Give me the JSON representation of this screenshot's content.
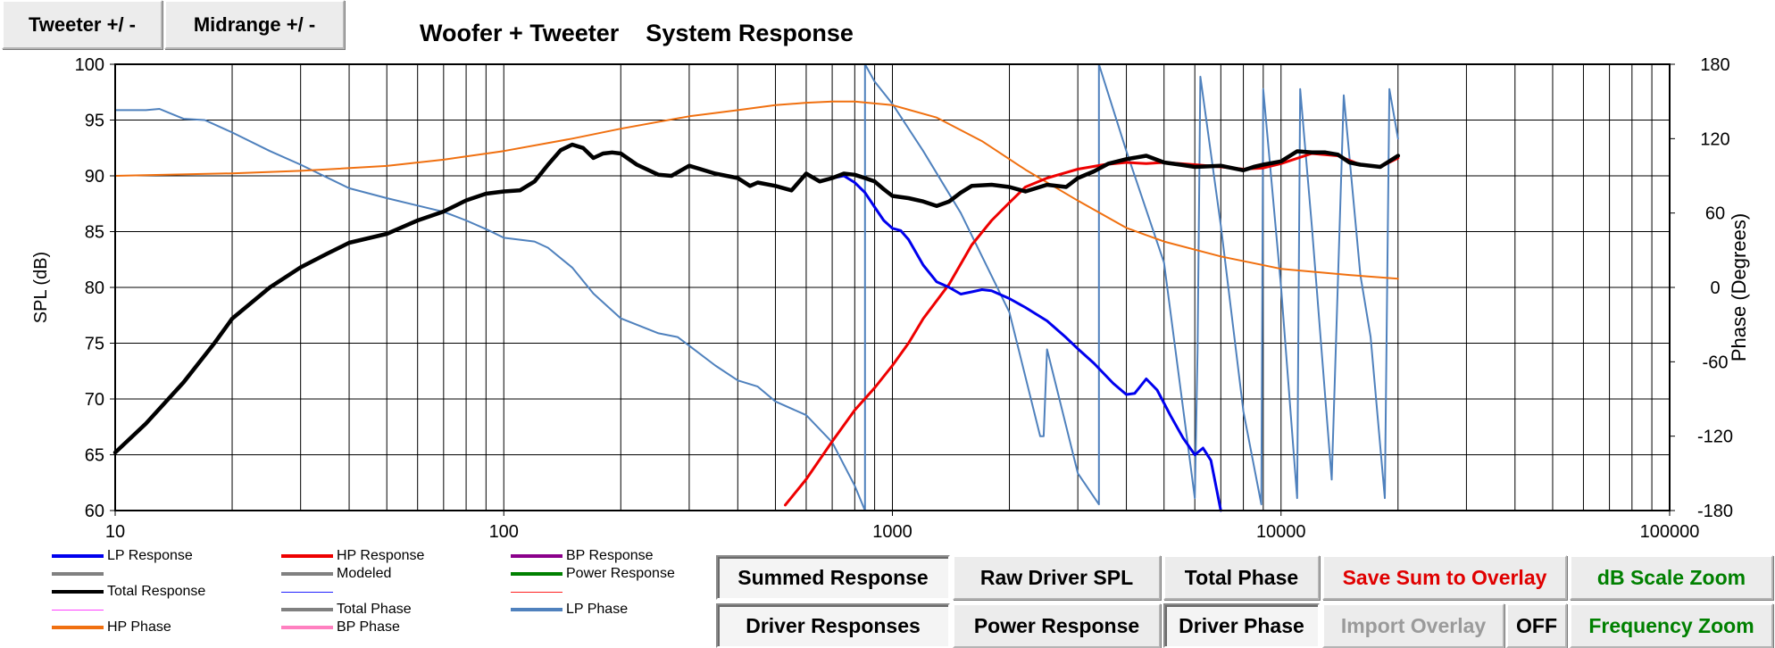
{
  "toolbar": {
    "tweeter_btn": "Tweeter +/ -",
    "midrange_btn": "Midrange   +/ -"
  },
  "chart_title": "Woofer + Tweeter    System Response",
  "buttons": {
    "summed_response": "Summed Response",
    "raw_driver_spl": "Raw Driver SPL",
    "total_phase": "Total Phase",
    "save_sum": "Save Sum to Overlay",
    "db_scale_zoom": "dB Scale Zoom",
    "driver_responses": "Driver Responses",
    "power_response": "Power Response",
    "driver_phase": "Driver Phase",
    "import_overlay": "Import Overlay",
    "off": "OFF",
    "frequency_zoom": "Frequency Zoom"
  },
  "colors": {
    "lp": "#0000ee",
    "hp": "#ee0000",
    "total": "#000000",
    "lp_phase": "#4f81bd",
    "hp_phase": "#f07010",
    "save_text": "#e00000",
    "green_text": "#008000",
    "gray_text": "#9a9a9a"
  },
  "legend": [
    {
      "label": "LP Response",
      "color": "#0000ee",
      "thin": false
    },
    {
      "label": "HP Response",
      "color": "#ee0000",
      "thin": false
    },
    {
      "label": "BP Response",
      "color": "#8b008b",
      "thin": false
    },
    {
      "label": "",
      "color": "#808080",
      "thin": false
    },
    {
      "label": "Modeled",
      "color": "#808080",
      "thin": false
    },
    {
      "label": "Power Response",
      "color": "#008000",
      "thin": false
    },
    {
      "label": "Total Response",
      "color": "#000000",
      "thin": false
    },
    {
      "label": "",
      "color": "#2020ff",
      "thin": true
    },
    {
      "label": "",
      "color": "#ff2020",
      "thin": true
    },
    {
      "label": "",
      "color": "#ff40ff",
      "thin": true
    },
    {
      "label": "Total Phase",
      "color": "#808080",
      "thin": false
    },
    {
      "label": "LP Phase",
      "color": "#4f81bd",
      "thin": false
    },
    {
      "label": "HP Phase",
      "color": "#f07010",
      "thin": false
    },
    {
      "label": "BP Phase",
      "color": "#ff80c0",
      "thin": false
    }
  ],
  "chart_data": {
    "type": "line",
    "title": "Woofer + Tweeter    System Response",
    "xlabel": "",
    "ylabel": "SPL (dB)",
    "y2label": "Phase (Degrees)",
    "xscale": "log",
    "xlim": [
      10,
      100000
    ],
    "ylim": [
      60,
      100
    ],
    "y2lim": [
      -180,
      180
    ],
    "xticks": [
      10,
      100,
      1000,
      10000,
      100000
    ],
    "xtick_labels": [
      "10",
      "100",
      "1000",
      "10000",
      "100000"
    ],
    "yticks": [
      60,
      65,
      70,
      75,
      80,
      85,
      90,
      95,
      100
    ],
    "y2ticks": [
      -180,
      -120,
      -60,
      0,
      60,
      120,
      180
    ],
    "grid": true,
    "series": [
      {
        "name": "Total Response",
        "axis": "left",
        "color": "#000000",
        "width": 4.5,
        "points": [
          [
            10,
            65.2
          ],
          [
            12,
            67.8
          ],
          [
            15,
            71.5
          ],
          [
            18,
            75
          ],
          [
            20,
            77.2
          ],
          [
            25,
            80
          ],
          [
            30,
            81.8
          ],
          [
            35,
            83
          ],
          [
            40,
            84
          ],
          [
            50,
            84.8
          ],
          [
            60,
            86
          ],
          [
            70,
            86.8
          ],
          [
            80,
            87.8
          ],
          [
            90,
            88.4
          ],
          [
            100,
            88.6
          ],
          [
            110,
            88.7
          ],
          [
            120,
            89.5
          ],
          [
            130,
            91
          ],
          [
            140,
            92.3
          ],
          [
            150,
            92.8
          ],
          [
            160,
            92.5
          ],
          [
            170,
            91.6
          ],
          [
            180,
            92
          ],
          [
            190,
            92.1
          ],
          [
            200,
            92
          ],
          [
            220,
            91
          ],
          [
            250,
            90.1
          ],
          [
            270,
            90
          ],
          [
            300,
            90.9
          ],
          [
            350,
            90.2
          ],
          [
            400,
            89.8
          ],
          [
            430,
            89.1
          ],
          [
            450,
            89.4
          ],
          [
            500,
            89.1
          ],
          [
            550,
            88.7
          ],
          [
            600,
            90.2
          ],
          [
            650,
            89.5
          ],
          [
            700,
            89.8
          ],
          [
            750,
            90.2
          ],
          [
            800,
            90.1
          ],
          [
            850,
            89.8
          ],
          [
            900,
            89.5
          ],
          [
            950,
            88.8
          ],
          [
            1000,
            88.2
          ],
          [
            1100,
            88
          ],
          [
            1200,
            87.7
          ],
          [
            1300,
            87.3
          ],
          [
            1400,
            87.7
          ],
          [
            1500,
            88.5
          ],
          [
            1600,
            89.1
          ],
          [
            1800,
            89.2
          ],
          [
            2000,
            89
          ],
          [
            2200,
            88.6
          ],
          [
            2500,
            89.2
          ],
          [
            2800,
            89
          ],
          [
            3000,
            89.8
          ],
          [
            3300,
            90.4
          ],
          [
            3600,
            91.1
          ],
          [
            4000,
            91.5
          ],
          [
            4500,
            91.8
          ],
          [
            5000,
            91.2
          ],
          [
            5500,
            91
          ],
          [
            6000,
            90.8
          ],
          [
            7000,
            90.9
          ],
          [
            8000,
            90.5
          ],
          [
            8500,
            90.8
          ],
          [
            9000,
            91
          ],
          [
            10000,
            91.3
          ],
          [
            11000,
            92.2
          ],
          [
            12000,
            92.1
          ],
          [
            13000,
            92.1
          ],
          [
            14000,
            91.9
          ],
          [
            15000,
            91.2
          ],
          [
            16000,
            91
          ],
          [
            18000,
            90.8
          ],
          [
            20000,
            91.8
          ]
        ]
      },
      {
        "name": "LP Response",
        "axis": "left",
        "color": "#0000ee",
        "width": 3,
        "points": [
          [
            430,
            89.1
          ],
          [
            450,
            89.4
          ],
          [
            500,
            89.1
          ],
          [
            550,
            88.7
          ],
          [
            600,
            90.2
          ],
          [
            650,
            89.5
          ],
          [
            700,
            89.8
          ],
          [
            750,
            90
          ],
          [
            800,
            89.4
          ],
          [
            850,
            88.5
          ],
          [
            900,
            87.2
          ],
          [
            950,
            86
          ],
          [
            1000,
            85.3
          ],
          [
            1050,
            85.1
          ],
          [
            1100,
            84.3
          ],
          [
            1200,
            82
          ],
          [
            1300,
            80.5
          ],
          [
            1400,
            80
          ],
          [
            1500,
            79.4
          ],
          [
            1600,
            79.6
          ],
          [
            1700,
            79.8
          ],
          [
            1800,
            79.7
          ],
          [
            2000,
            79
          ],
          [
            2200,
            78.2
          ],
          [
            2500,
            77
          ],
          [
            2800,
            75.5
          ],
          [
            3000,
            74.5
          ],
          [
            3300,
            73.2
          ],
          [
            3700,
            71.4
          ],
          [
            4000,
            70.4
          ],
          [
            4200,
            70.5
          ],
          [
            4500,
            71.8
          ],
          [
            4800,
            70.8
          ],
          [
            5200,
            68.5
          ],
          [
            5600,
            66.5
          ],
          [
            6000,
            65
          ],
          [
            6300,
            65.6
          ],
          [
            6600,
            64.5
          ],
          [
            7000,
            60
          ]
        ]
      },
      {
        "name": "HP Response",
        "axis": "left",
        "color": "#ee0000",
        "width": 3,
        "points": [
          [
            530,
            60.5
          ],
          [
            600,
            62.8
          ],
          [
            700,
            66.2
          ],
          [
            800,
            69
          ],
          [
            900,
            71
          ],
          [
            1000,
            73
          ],
          [
            1100,
            75
          ],
          [
            1200,
            77.2
          ],
          [
            1400,
            80.3
          ],
          [
            1600,
            83.8
          ],
          [
            1800,
            86
          ],
          [
            2000,
            87.6
          ],
          [
            2200,
            89
          ],
          [
            2500,
            89.8
          ],
          [
            2800,
            90.3
          ],
          [
            3000,
            90.6
          ],
          [
            3500,
            91
          ],
          [
            4000,
            91.2
          ],
          [
            4500,
            91.1
          ],
          [
            5000,
            91.2
          ],
          [
            6000,
            91
          ],
          [
            7000,
            90.8
          ],
          [
            8000,
            90.6
          ],
          [
            9000,
            90.7
          ],
          [
            10000,
            91.1
          ],
          [
            12000,
            92
          ],
          [
            14000,
            91.8
          ],
          [
            16000,
            91
          ],
          [
            18000,
            90.8
          ],
          [
            20000,
            91.6
          ]
        ]
      },
      {
        "name": "HP Phase",
        "axis": "right",
        "color": "#f07010",
        "width": 2,
        "points": [
          [
            10,
            90
          ],
          [
            20,
            92
          ],
          [
            30,
            94
          ],
          [
            50,
            98
          ],
          [
            70,
            103
          ],
          [
            100,
            110
          ],
          [
            150,
            120
          ],
          [
            200,
            128
          ],
          [
            300,
            138
          ],
          [
            400,
            143
          ],
          [
            500,
            147
          ],
          [
            600,
            149
          ],
          [
            700,
            150
          ],
          [
            800,
            150
          ],
          [
            1000,
            147
          ],
          [
            1300,
            137
          ],
          [
            1700,
            118
          ],
          [
            2200,
            95
          ],
          [
            3000,
            70
          ],
          [
            4000,
            48
          ],
          [
            5000,
            37
          ],
          [
            7000,
            25
          ],
          [
            10000,
            15
          ],
          [
            15000,
            10
          ],
          [
            20000,
            7
          ]
        ]
      },
      {
        "name": "LP Phase",
        "axis": "right",
        "color": "#4f81bd",
        "width": 2,
        "points": [
          [
            10,
            143
          ],
          [
            12,
            143
          ],
          [
            13,
            144
          ],
          [
            15,
            136
          ],
          [
            17,
            135
          ],
          [
            20,
            125
          ],
          [
            25,
            110
          ],
          [
            30,
            99
          ],
          [
            40,
            80
          ],
          [
            50,
            72
          ],
          [
            60,
            66
          ],
          [
            70,
            61
          ],
          [
            80,
            54
          ],
          [
            90,
            47
          ],
          [
            100,
            40
          ],
          [
            120,
            37
          ],
          [
            130,
            32
          ],
          [
            150,
            16
          ],
          [
            170,
            -5
          ],
          [
            200,
            -25
          ],
          [
            250,
            -37
          ],
          [
            280,
            -40
          ],
          [
            300,
            -47
          ],
          [
            350,
            -63
          ],
          [
            400,
            -75
          ],
          [
            450,
            -80
          ],
          [
            500,
            -92
          ],
          [
            600,
            -103
          ],
          [
            700,
            -125
          ],
          [
            800,
            -160
          ],
          [
            850,
            -180
          ],
          [
            850,
            180
          ],
          [
            900,
            166
          ],
          [
            1000,
            148
          ],
          [
            1200,
            110
          ],
          [
            1500,
            60
          ],
          [
            2000,
            -20
          ],
          [
            2400,
            -120
          ],
          [
            2450,
            -120
          ],
          [
            2500,
            -50
          ],
          [
            3000,
            -150
          ],
          [
            3400,
            -175
          ],
          [
            3400,
            180
          ],
          [
            4000,
            110
          ],
          [
            5000,
            20
          ],
          [
            6000,
            -170
          ],
          [
            6100,
            -50
          ],
          [
            6200,
            170
          ],
          [
            7000,
            50
          ],
          [
            8000,
            -100
          ],
          [
            8900,
            -175
          ],
          [
            9000,
            160
          ],
          [
            10000,
            0
          ],
          [
            11000,
            -170
          ],
          [
            11200,
            160
          ],
          [
            12000,
            50
          ],
          [
            13500,
            -155
          ],
          [
            14500,
            155
          ],
          [
            16000,
            10
          ],
          [
            17000,
            -40
          ],
          [
            18500,
            -170
          ],
          [
            19000,
            160
          ],
          [
            20000,
            120
          ]
        ]
      }
    ]
  },
  "axis_labels": {
    "ylabel": "SPL (dB)",
    "y2label": "Phase (Degrees)",
    "xticks": [
      "10",
      "100",
      "1000",
      "10000",
      "100000"
    ],
    "yticks": [
      "60",
      "65",
      "70",
      "75",
      "80",
      "85",
      "90",
      "95",
      "100"
    ],
    "y2ticks": [
      "-180",
      "-120",
      "-60",
      "0",
      "60",
      "120",
      "180"
    ]
  }
}
